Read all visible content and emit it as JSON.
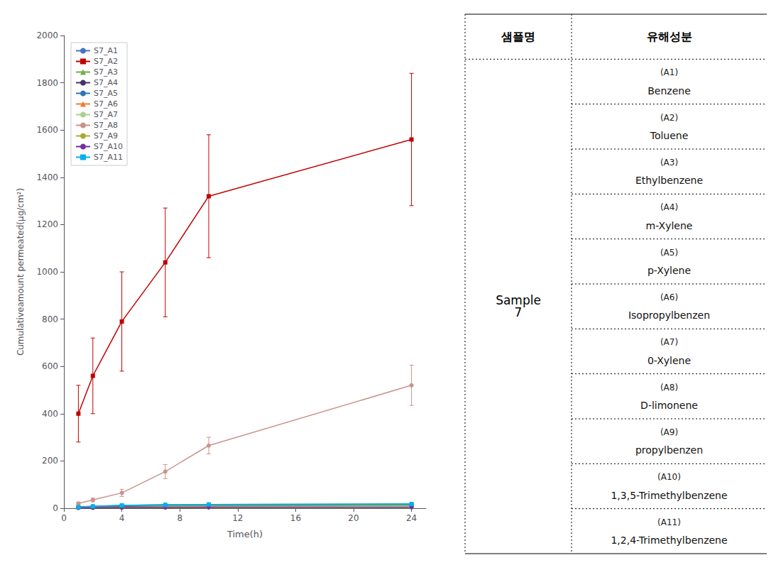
{
  "chart_data": {
    "type": "line",
    "x": [
      1,
      2,
      4,
      7,
      10,
      24
    ],
    "series": [
      {
        "name": "S7_A1",
        "color": "#4472C4",
        "marker": "circle",
        "values": [
          5,
          5,
          8,
          10,
          12,
          14
        ],
        "errors": [
          2,
          2,
          2,
          2,
          2,
          2
        ]
      },
      {
        "name": "S7_A2",
        "color": "#C00000",
        "marker": "square",
        "values": [
          400,
          560,
          790,
          1040,
          1320,
          1560
        ],
        "errors": [
          120,
          160,
          210,
          230,
          260,
          280
        ]
      },
      {
        "name": "S7_A3",
        "color": "#70AD47",
        "marker": "triangle",
        "values": [
          3,
          5,
          8,
          10,
          11,
          12
        ],
        "errors": [
          1,
          1,
          2,
          2,
          2,
          2
        ]
      },
      {
        "name": "S7_A4",
        "color": "#44336B",
        "marker": "circle",
        "values": [
          3,
          4,
          5,
          6,
          7,
          7
        ],
        "errors": [
          1,
          1,
          1,
          1,
          1,
          1
        ]
      },
      {
        "name": "S7_A5",
        "color": "#2E75B6",
        "marker": "circle",
        "values": [
          5,
          8,
          12,
          15,
          16,
          18
        ],
        "errors": [
          2,
          2,
          2,
          2,
          2,
          2
        ]
      },
      {
        "name": "S7_A6",
        "color": "#ED7D31",
        "marker": "triangle",
        "values": [
          2,
          3,
          4,
          5,
          6,
          7
        ],
        "errors": [
          0.5,
          0.5,
          1,
          1,
          1,
          1
        ]
      },
      {
        "name": "S7_A7",
        "color": "#A9D18E",
        "marker": "circle",
        "values": [
          2,
          3,
          4,
          5,
          5,
          6
        ],
        "errors": [
          0.5,
          0.5,
          1,
          1,
          1,
          1
        ]
      },
      {
        "name": "S7_A8",
        "color": "#C9938A",
        "marker": "circle",
        "values": [
          20,
          35,
          65,
          155,
          265,
          520
        ],
        "errors": [
          5,
          8,
          15,
          30,
          35,
          85
        ]
      },
      {
        "name": "S7_A9",
        "color": "#AAAA33",
        "marker": "circle",
        "values": [
          2,
          2,
          3,
          3,
          3,
          4
        ],
        "errors": [
          0.5,
          0.5,
          0.5,
          0.5,
          0.5,
          0.5
        ]
      },
      {
        "name": "S7_A10",
        "color": "#7030A0",
        "marker": "circle",
        "values": [
          2,
          2,
          3,
          3,
          4,
          4
        ],
        "errors": [
          0.5,
          0.5,
          0.5,
          0.5,
          0.5,
          0.5
        ]
      },
      {
        "name": "S7_A11",
        "color": "#00B0F0",
        "marker": "square",
        "values": [
          5,
          8,
          12,
          14,
          16,
          18
        ],
        "errors": [
          1,
          2,
          2,
          2,
          2,
          2
        ]
      }
    ],
    "xlabel": "Time(h)",
    "ylabel": "Cumulativeamount permeated(μg/cm²)",
    "xlim": [
      0,
      25
    ],
    "xticks": [
      0,
      4,
      8,
      12,
      16,
      20,
      24
    ],
    "ylim": [
      0,
      2000
    ],
    "yticks": [
      0,
      200,
      400,
      600,
      800,
      1000,
      1200,
      1400,
      1600,
      1800,
      2000
    ],
    "grid": false,
    "legend": "upper left"
  },
  "table": {
    "headers": [
      "샘플명",
      "유해성분"
    ],
    "sample": "Sample\n7",
    "rows": [
      [
        "(A1)",
        "Benzene"
      ],
      [
        "(A2)",
        "Toluene"
      ],
      [
        "(A3)",
        "Ethylbenzene"
      ],
      [
        "(A4)",
        "m-Xylene"
      ],
      [
        "(A5)",
        "p-Xylene"
      ],
      [
        "(A6)",
        "Isopropylbenzen"
      ],
      [
        "(A7)",
        "0-Xylene"
      ],
      [
        "(A8)",
        "D-limonene"
      ],
      [
        "(A9)",
        "propylbenzen"
      ],
      [
        "(A10)",
        "1,3,5-Trimethylbenzene"
      ],
      [
        "(A11)",
        "1,2,4-Trimethylbenzene"
      ]
    ]
  }
}
